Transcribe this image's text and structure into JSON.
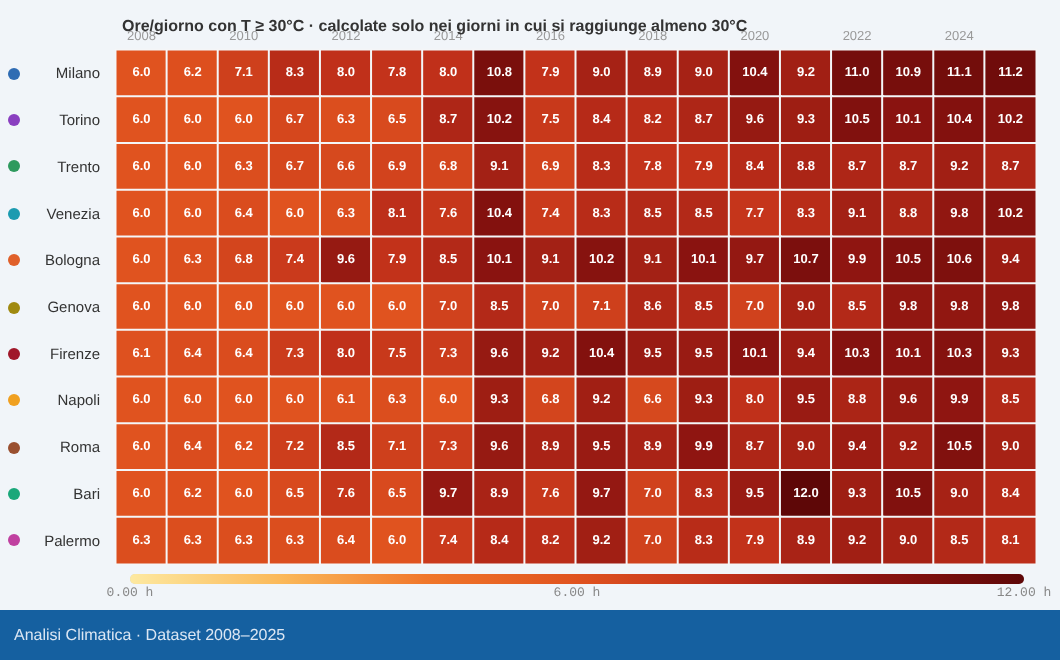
{
  "chart_data": {
    "type": "heatmap",
    "title": "Ore/giorno con T ≥ 30°C · calcolate solo nei giorni in cui si raggiunge almeno 30°C",
    "categories": [
      "2008",
      null,
      "2010",
      null,
      "2012",
      null,
      "2014",
      null,
      "2016",
      null,
      "2018",
      null,
      "2020",
      null,
      "2022",
      null,
      "2024",
      null
    ],
    "y_categories": [
      "Milano",
      "Torino",
      "Trento",
      "Venezia",
      "Bologna",
      "Genova",
      "Firenze",
      "Napoli",
      "Roma",
      "Bari",
      "Palermo"
    ],
    "cells": [
      [
        6.0,
        6.2,
        7.1,
        8.3,
        8.0,
        7.8,
        8.0,
        10.8,
        7.9,
        9.0,
        8.9,
        9.0,
        10.4,
        9.2,
        11.0,
        10.9,
        11.1,
        11.2
      ],
      [
        6.0,
        6.0,
        6.0,
        6.7,
        6.3,
        6.5,
        8.7,
        10.2,
        7.5,
        8.4,
        8.2,
        8.7,
        9.6,
        9.3,
        10.5,
        10.1,
        10.4,
        10.2
      ],
      [
        6.0,
        6.0,
        6.3,
        6.7,
        6.6,
        6.9,
        6.8,
        9.1,
        6.9,
        8.3,
        7.8,
        7.9,
        8.4,
        8.8,
        8.7,
        8.7,
        9.2,
        8.7
      ],
      [
        6.0,
        6.0,
        6.4,
        6.0,
        6.3,
        8.1,
        7.6,
        10.4,
        7.4,
        8.3,
        8.5,
        8.5,
        7.7,
        8.3,
        9.1,
        8.8,
        9.8,
        10.2
      ],
      [
        6.0,
        6.3,
        6.8,
        7.4,
        9.6,
        7.9,
        8.5,
        10.1,
        9.1,
        10.2,
        9.1,
        10.1,
        9.7,
        10.7,
        9.9,
        10.5,
        10.6,
        9.4
      ],
      [
        6.0,
        6.0,
        6.0,
        6.0,
        6.0,
        6.0,
        7.0,
        8.5,
        7.0,
        7.1,
        8.6,
        8.5,
        7.0,
        9.0,
        8.5,
        9.8,
        9.8,
        9.8
      ],
      [
        6.1,
        6.4,
        6.4,
        7.3,
        8.0,
        7.5,
        7.3,
        9.6,
        9.2,
        10.4,
        9.5,
        9.5,
        10.1,
        9.4,
        10.3,
        10.1,
        10.3,
        9.3
      ],
      [
        6.0,
        6.0,
        6.0,
        6.0,
        6.1,
        6.3,
        6.0,
        9.3,
        6.8,
        9.2,
        6.6,
        9.3,
        8.0,
        9.5,
        8.8,
        9.6,
        9.9,
        8.5
      ],
      [
        6.0,
        6.4,
        6.2,
        7.2,
        8.5,
        7.1,
        7.3,
        9.6,
        8.9,
        9.5,
        8.9,
        9.9,
        8.7,
        9.0,
        9.4,
        9.2,
        10.5,
        9.0
      ],
      [
        6.0,
        6.2,
        6.0,
        6.5,
        7.6,
        6.5,
        9.7,
        8.9,
        7.6,
        9.7,
        7.0,
        8.3,
        9.5,
        12.0,
        9.3,
        10.5,
        9.0,
        8.4
      ],
      [
        6.3,
        6.3,
        6.3,
        6.3,
        6.4,
        6.0,
        7.4,
        8.4,
        8.2,
        9.2,
        7.0,
        8.3,
        7.9,
        8.9,
        9.2,
        9.0,
        8.5,
        8.1
      ]
    ],
    "cell_labels": [
      [
        "6.0",
        "6.2",
        "7.1",
        "8.3",
        "8.0",
        "7.8",
        "8.0",
        "10.8",
        "7.9",
        "9.0",
        "8.9",
        "9.0",
        "10.4",
        "9.2",
        "11.0",
        "10.9",
        "11.1",
        "11.2"
      ],
      [
        "6.0",
        "6.0",
        "6.0",
        "6.7",
        "6.3",
        "6.5",
        "8.7",
        "10.2",
        "7.5",
        "8.4",
        "8.2",
        "8.7",
        "9.6",
        "9.3",
        "10.5",
        "10.1",
        "10.4",
        "10.2"
      ],
      [
        "6.0",
        "6.0",
        "6.3",
        "6.7",
        "6.6",
        "6.9",
        "6.8",
        "9.1",
        "6.9",
        "8.3",
        "7.8",
        "7.9",
        "8.4",
        "8.8",
        "8.7",
        "8.7",
        "9.2",
        "8.7"
      ],
      [
        "6.0",
        "6.0",
        "6.4",
        "6.0",
        "6.3",
        "8.1",
        "7.6",
        "10.4",
        "7.4",
        "8.3",
        "8.5",
        "8.5",
        "7.7",
        "8.3",
        "9.1",
        "8.8",
        "9.8",
        "10.2"
      ],
      [
        "6.0",
        "6.3",
        "6.8",
        "7.4",
        "9.6",
        "7.9",
        "8.5",
        "10.1",
        "9.1",
        "10.2",
        "9.1",
        "10.1",
        "9.7",
        "10.7",
        "9.9",
        "10.5",
        "10.6",
        "9.4"
      ],
      [
        "6.0",
        "6.0",
        "6.0",
        "6.0",
        "6.0",
        "6.0",
        "7.0",
        "8.5",
        "7.0",
        "7.1",
        "8.6",
        "8.5",
        "7.0",
        "9.0",
        "8.5",
        "9.8",
        "9.8",
        "9.8"
      ],
      [
        "6.1",
        "6.4",
        "6.4",
        "7.3",
        "8.0",
        "7.5",
        "7.3",
        "9.6",
        "9.2",
        "10.4",
        "9.5",
        "9.5",
        "10.1",
        "9.4",
        "10.3",
        "10.1",
        "10.3",
        "9.3"
      ],
      [
        "6.0",
        "6.0",
        "6.0",
        "6.0",
        "6.1",
        "6.3",
        "6.0",
        "9.3",
        "6.8",
        "9.2",
        "6.6",
        "9.3",
        "8.0",
        "9.5",
        "8.8",
        "9.6",
        "9.9",
        "8.5"
      ],
      [
        "6.0",
        "6.4",
        "6.2",
        "7.2",
        "8.5",
        "7.1",
        "7.3",
        "9.6",
        "8.9",
        "9.5",
        "8.9",
        "9.9",
        "8.7",
        "9.0",
        "9.4",
        "9.2",
        "10.5",
        "9.0"
      ],
      [
        "6.0",
        "6.2",
        "6.0",
        "6.5",
        "7.6",
        "6.5",
        "9.7",
        "8.9",
        "7.6",
        "9.7",
        "7.0",
        "8.3",
        "9.5",
        "12.0",
        "9.3",
        "10.5",
        "9.0",
        "8.4"
      ],
      [
        "6.3",
        "6.3",
        "6.3",
        "6.3",
        "6.4",
        "6.0",
        "7.4",
        "8.4",
        "8.2",
        "9.2",
        "7.0",
        "8.3",
        "7.9",
        "8.9",
        "9.2",
        "9.0",
        "8.5",
        "8.1"
      ]
    ],
    "data_labels": true,
    "clim": [
      0,
      12
    ],
    "cticks": [
      {
        "value": 0,
        "label": "0.00 h"
      },
      {
        "value": 6,
        "label": "6.00 h"
      },
      {
        "value": 12,
        "label": "12.00 h"
      }
    ],
    "annotations": [
      "Analisi Climatica · Dataset 2008–2025"
    ]
  }
}
